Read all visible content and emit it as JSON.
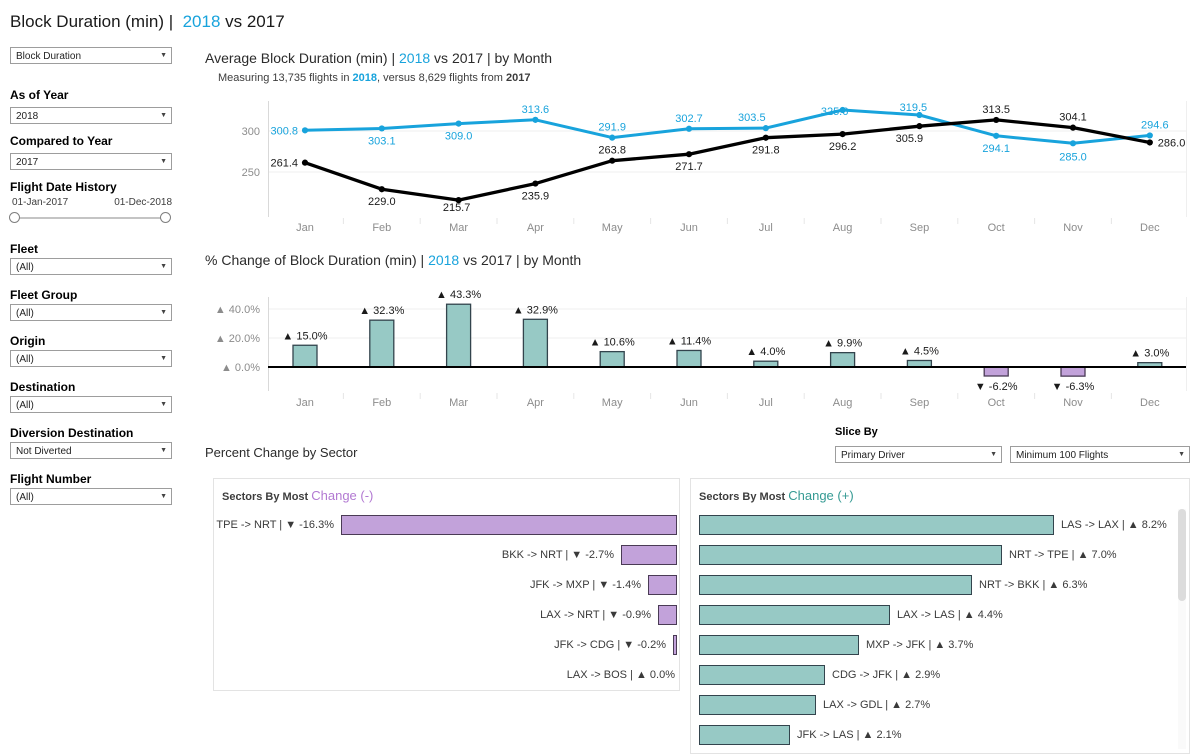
{
  "colors": {
    "blue": "#18a3dc",
    "black_series": "#000000",
    "teal_fill": "#97c9c5",
    "teal_stroke": "#33444d",
    "purple_fill": "#c2a2da",
    "purple_stroke": "#4a3b55",
    "teal_accent_text": "#359a93",
    "purple_accent_text": "#b279d2",
    "axis_text": "#8c8c8c"
  },
  "title": {
    "pre": "Block Duration (min) |  ",
    "year": "2018",
    "post": " vs 2017"
  },
  "sidebar": {
    "measure_dropdown": {
      "value": "Block Duration"
    },
    "filters_top": [
      {
        "label": "As of Year",
        "value": "2018"
      },
      {
        "label": "Compared to Year",
        "value": "2017"
      }
    ],
    "date_slider": {
      "label": "Flight Date History",
      "start": "01-Jan-2017",
      "end": "01-Dec-2018"
    },
    "filters_bottom": [
      {
        "label": "Fleet",
        "value": "(All)"
      },
      {
        "label": "Fleet Group",
        "value": "(All)"
      },
      {
        "label": "Origin",
        "value": "(All)"
      },
      {
        "label": "Destination",
        "value": "(All)"
      },
      {
        "label": "Diversion Destination",
        "value": "Not Diverted"
      },
      {
        "label": "Flight Number",
        "value": "(All)"
      }
    ]
  },
  "sector_section": {
    "heading": "Percent Change by Sector",
    "slice_by_label": "Slice By",
    "slice_dropdown_1": "Primary Driver",
    "slice_dropdown_2": "Minimum 100 Flights"
  },
  "chart_data": [
    {
      "id": "avg-block-duration-by-month",
      "type": "line",
      "title": {
        "pre": "Average Block Duration (min) | ",
        "year": "2018",
        "post": " vs 2017 | by Month"
      },
      "subtitle": {
        "s1": "Measuring 13,735 flights in ",
        "s2": "2018",
        "s3": ", versus 8,629 flights from ",
        "s4": "2017"
      },
      "categories": [
        "Jan",
        "Feb",
        "Mar",
        "Apr",
        "May",
        "Jun",
        "Jul",
        "Aug",
        "Sep",
        "Oct",
        "Nov",
        "Dec"
      ],
      "series": [
        {
          "name": "2018",
          "color": "#18a3dc",
          "values": [
            300.8,
            303.1,
            309.0,
            313.6,
            291.9,
            302.7,
            303.5,
            325.6,
            319.5,
            294.1,
            285.0,
            294.6
          ]
        },
        {
          "name": "2017",
          "color": "#000000",
          "values": [
            261.4,
            229.0,
            215.7,
            235.9,
            263.8,
            271.7,
            291.8,
            296.2,
            305.9,
            313.5,
            304.1,
            286.0
          ]
        }
      ],
      "yticks": [
        300,
        250
      ],
      "ylim": [
        205,
        340
      ],
      "grid": true,
      "legend_position": "none"
    },
    {
      "id": "pct-change-by-month",
      "type": "bar",
      "title": {
        "pre": "% Change of Block Duration (min) | ",
        "year": "2018",
        "post": " vs 2017 | by Month"
      },
      "categories": [
        "Jan",
        "Feb",
        "Mar",
        "Apr",
        "May",
        "Jun",
        "Jul",
        "Aug",
        "Sep",
        "Oct",
        "Nov",
        "Dec"
      ],
      "values": [
        15.0,
        32.3,
        43.3,
        32.9,
        10.6,
        11.4,
        4.0,
        9.9,
        4.5,
        -6.2,
        -6.3,
        3.0
      ],
      "yticks": [
        {
          "value": 40,
          "label": "▲ 40.0%"
        },
        {
          "value": 20,
          "label": "▲ 20.0%"
        },
        {
          "value": 0,
          "label": "▲ 0.0%"
        }
      ],
      "ylim": [
        -15,
        50
      ],
      "positive_color": "#97c9c5",
      "negative_color": "#c2a2da"
    },
    {
      "id": "sectors-most-change-negative",
      "type": "bar",
      "orientation": "horizontal",
      "header": {
        "plain": "Sectors By Most ",
        "accent": "Change (-)"
      },
      "rows": [
        {
          "sector": "TPE -> NRT",
          "label": "TPE -> NRT | ▼ -16.3%",
          "value": -16.3
        },
        {
          "sector": "BKK -> NRT",
          "label": "BKK -> NRT | ▼ -2.7%",
          "value": -2.7
        },
        {
          "sector": "JFK -> MXP",
          "label": "JFK -> MXP | ▼ -1.4%",
          "value": -1.4
        },
        {
          "sector": "LAX -> NRT",
          "label": "LAX -> NRT | ▼ -0.9%",
          "value": -0.9
        },
        {
          "sector": "JFK -> CDG",
          "label": "JFK -> CDG | ▼ -0.2%",
          "value": -0.2
        },
        {
          "sector": "LAX -> BOS",
          "label": "LAX -> BOS | ▲ 0.0%",
          "value": 0.0
        }
      ]
    },
    {
      "id": "sectors-most-change-positive",
      "type": "bar",
      "orientation": "horizontal",
      "header": {
        "plain": "Sectors By Most ",
        "accent": "Change (+)"
      },
      "rows": [
        {
          "sector": "LAS -> LAX",
          "label": "LAS -> LAX | ▲ 8.2%",
          "value": 8.2
        },
        {
          "sector": "NRT -> TPE",
          "label": "NRT -> TPE | ▲ 7.0%",
          "value": 7.0
        },
        {
          "sector": "NRT -> BKK",
          "label": "NRT -> BKK | ▲ 6.3%",
          "value": 6.3
        },
        {
          "sector": "LAX -> LAS",
          "label": "LAX -> LAS | ▲ 4.4%",
          "value": 4.4
        },
        {
          "sector": "MXP -> JFK",
          "label": "MXP -> JFK | ▲ 3.7%",
          "value": 3.7
        },
        {
          "sector": "CDG -> JFK",
          "label": "CDG -> JFK | ▲ 2.9%",
          "value": 2.9
        },
        {
          "sector": "LAX -> GDL",
          "label": "LAX -> GDL | ▲ 2.7%",
          "value": 2.7
        },
        {
          "sector": "JFK -> LAS",
          "label": "JFK -> LAS | ▲ 2.1%",
          "value": 2.1
        }
      ]
    }
  ]
}
